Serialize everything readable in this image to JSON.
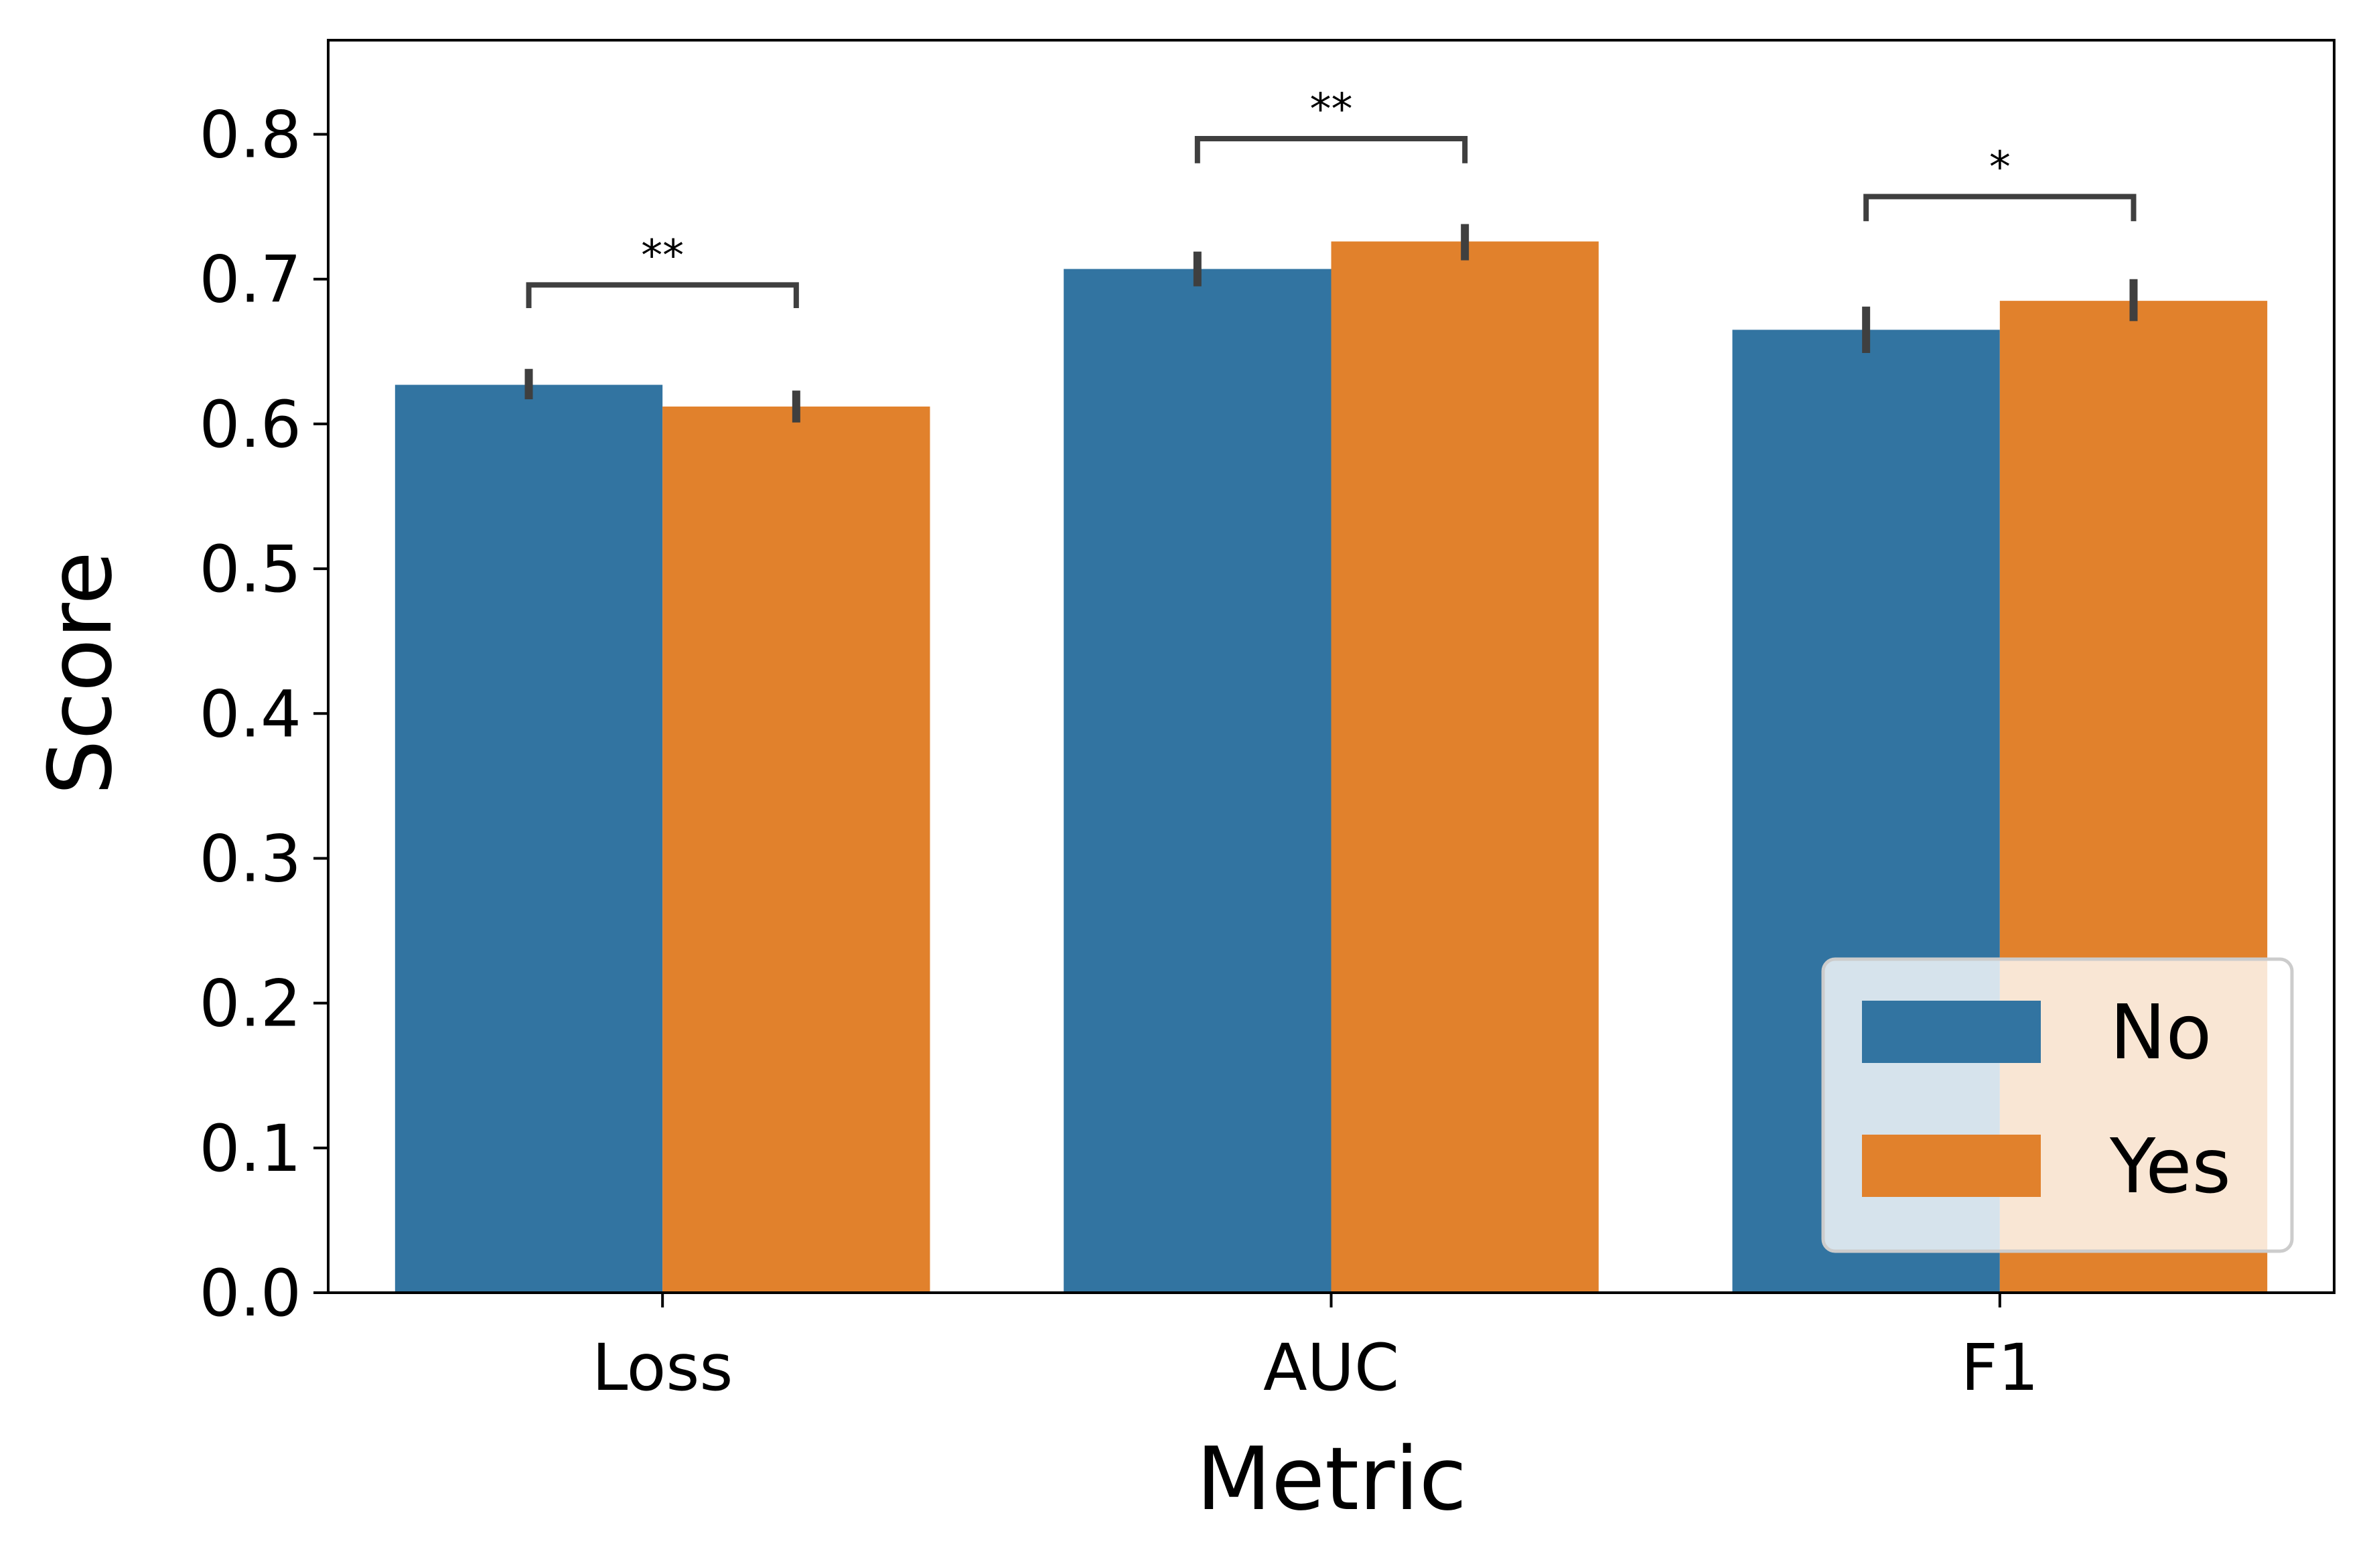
{
  "chart_data": {
    "type": "bar",
    "title": "",
    "xlabel": "Metric",
    "ylabel": "Score",
    "categories": [
      "Loss",
      "AUC",
      "F1"
    ],
    "series": [
      {
        "name": "No",
        "values": [
          0.627,
          0.707,
          0.665
        ],
        "ci": [
          [
            0.617,
            0.638
          ],
          [
            0.695,
            0.719
          ],
          [
            0.649,
            0.681
          ]
        ],
        "color": "#3274a1"
      },
      {
        "name": "Yes",
        "values": [
          0.612,
          0.726,
          0.685
        ],
        "ci": [
          [
            0.601,
            0.623
          ],
          [
            0.713,
            0.738
          ],
          [
            0.671,
            0.7
          ]
        ],
        "color": "#e1812c"
      }
    ],
    "ylim": [
      0,
      0.865
    ],
    "yticks": [
      "0.0",
      "0.1",
      "0.2",
      "0.3",
      "0.4",
      "0.5",
      "0.6",
      "0.7",
      "0.8"
    ],
    "significance": [
      {
        "category": "Loss",
        "label": "**",
        "y": 0.696,
        "leg_low": 0.68
      },
      {
        "category": "AUC",
        "label": "**",
        "y": 0.797,
        "leg_low": 0.78
      },
      {
        "category": "F1",
        "label": "*",
        "y": 0.757,
        "leg_low": 0.74
      }
    ],
    "grid": false,
    "legend_position": "lower-right",
    "errorbar_color": "#3f3f3f"
  }
}
